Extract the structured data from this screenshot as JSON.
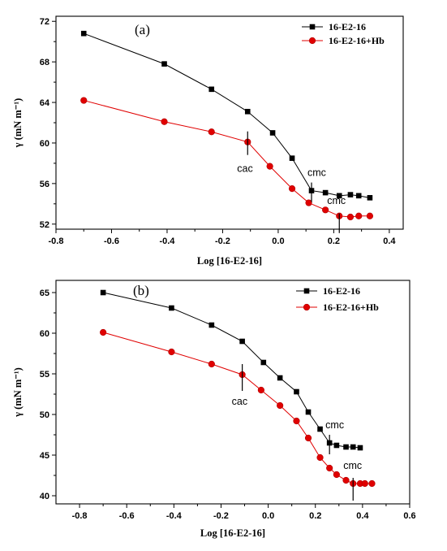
{
  "chart_data": [
    {
      "type": "line",
      "panel_label": "(a)",
      "xlabel": "Log [16-E2-16]",
      "ylabel": "γ (mN m⁻¹)",
      "xlim": [
        -0.8,
        0.45
      ],
      "ylim": [
        51.5,
        72.5
      ],
      "xticks": [
        -0.8,
        -0.6,
        -0.4,
        -0.2,
        0.0,
        0.2,
        0.4
      ],
      "xtick_labels": [
        "-0.8",
        "-0.6",
        "-0.4",
        "-0.2",
        "0.0",
        "0.2",
        "0.4"
      ],
      "yticks": [
        52,
        56,
        60,
        64,
        68,
        72
      ],
      "ytick_labels": [
        "52",
        "56",
        "60",
        "64",
        "68",
        "72"
      ],
      "legend_position": "top-right",
      "series": [
        {
          "name": "16-E2-16",
          "color": "#000000",
          "marker": "square",
          "x": [
            -0.7,
            -0.41,
            -0.24,
            -0.11,
            -0.02,
            0.05,
            0.12,
            0.17,
            0.22,
            0.26,
            0.29,
            0.33
          ],
          "y": [
            70.8,
            67.8,
            65.3,
            63.1,
            61.0,
            58.5,
            55.3,
            55.1,
            54.8,
            54.9,
            54.8,
            54.6
          ]
        },
        {
          "name": "16-E2-16+Hb",
          "color": "#e00000",
          "marker": "circle",
          "x": [
            -0.7,
            -0.41,
            -0.24,
            -0.11,
            -0.03,
            0.05,
            0.11,
            0.17,
            0.22,
            0.26,
            0.29,
            0.33
          ],
          "y": [
            64.2,
            62.1,
            61.1,
            60.1,
            57.7,
            55.5,
            54.1,
            53.4,
            52.8,
            52.7,
            52.8,
            52.8
          ]
        }
      ],
      "annotations": [
        {
          "text": "cac",
          "x": -0.11,
          "y": 60.1
        },
        {
          "text": "cmc",
          "x": 0.12,
          "y": 55.3
        },
        {
          "text": "cmc",
          "x": 0.22,
          "y": 52.8
        }
      ]
    },
    {
      "type": "line",
      "panel_label": "(b)",
      "xlabel": "Log [16-E2-16]",
      "ylabel": "γ (mN m⁻¹)",
      "xlim": [
        -0.9,
        0.6
      ],
      "ylim": [
        39,
        66.5
      ],
      "xticks": [
        -0.8,
        -0.6,
        -0.4,
        -0.2,
        0.0,
        0.2,
        0.4,
        0.6
      ],
      "xtick_labels": [
        "-0.8",
        "-0.6",
        "-0.4",
        "-0.2",
        "0.0",
        "0.2",
        "0.4",
        "0.6"
      ],
      "yticks": [
        40,
        45,
        50,
        55,
        60,
        65
      ],
      "ytick_labels": [
        "40",
        "45",
        "50",
        "55",
        "60",
        "65"
      ],
      "legend_position": "top-right",
      "series": [
        {
          "name": "16-E2-16",
          "color": "#000000",
          "marker": "square",
          "x": [
            -0.7,
            -0.41,
            -0.24,
            -0.11,
            -0.02,
            0.05,
            0.12,
            0.17,
            0.22,
            0.26,
            0.29,
            0.33,
            0.36,
            0.39
          ],
          "y": [
            65.0,
            63.1,
            61.0,
            59.0,
            56.4,
            54.5,
            52.8,
            50.3,
            48.2,
            46.5,
            46.2,
            46.0,
            46.0,
            45.9
          ]
        },
        {
          "name": "16-E2-16+Hb",
          "color": "#e00000",
          "marker": "circle",
          "x": [
            -0.7,
            -0.41,
            -0.24,
            -0.11,
            -0.03,
            0.05,
            0.12,
            0.17,
            0.22,
            0.26,
            0.29,
            0.33,
            0.36,
            0.39,
            0.41,
            0.44
          ],
          "y": [
            60.1,
            57.7,
            56.2,
            54.9,
            53.0,
            51.1,
            49.2,
            47.1,
            44.7,
            43.4,
            42.6,
            41.9,
            41.5,
            41.5,
            41.5,
            41.5
          ]
        }
      ],
      "annotations": [
        {
          "text": "cac",
          "x": -0.11,
          "y": 54.9
        },
        {
          "text": "cmc",
          "x": 0.26,
          "y": 46.5
        },
        {
          "text": "cmc",
          "x": 0.36,
          "y": 41.5
        }
      ]
    }
  ]
}
